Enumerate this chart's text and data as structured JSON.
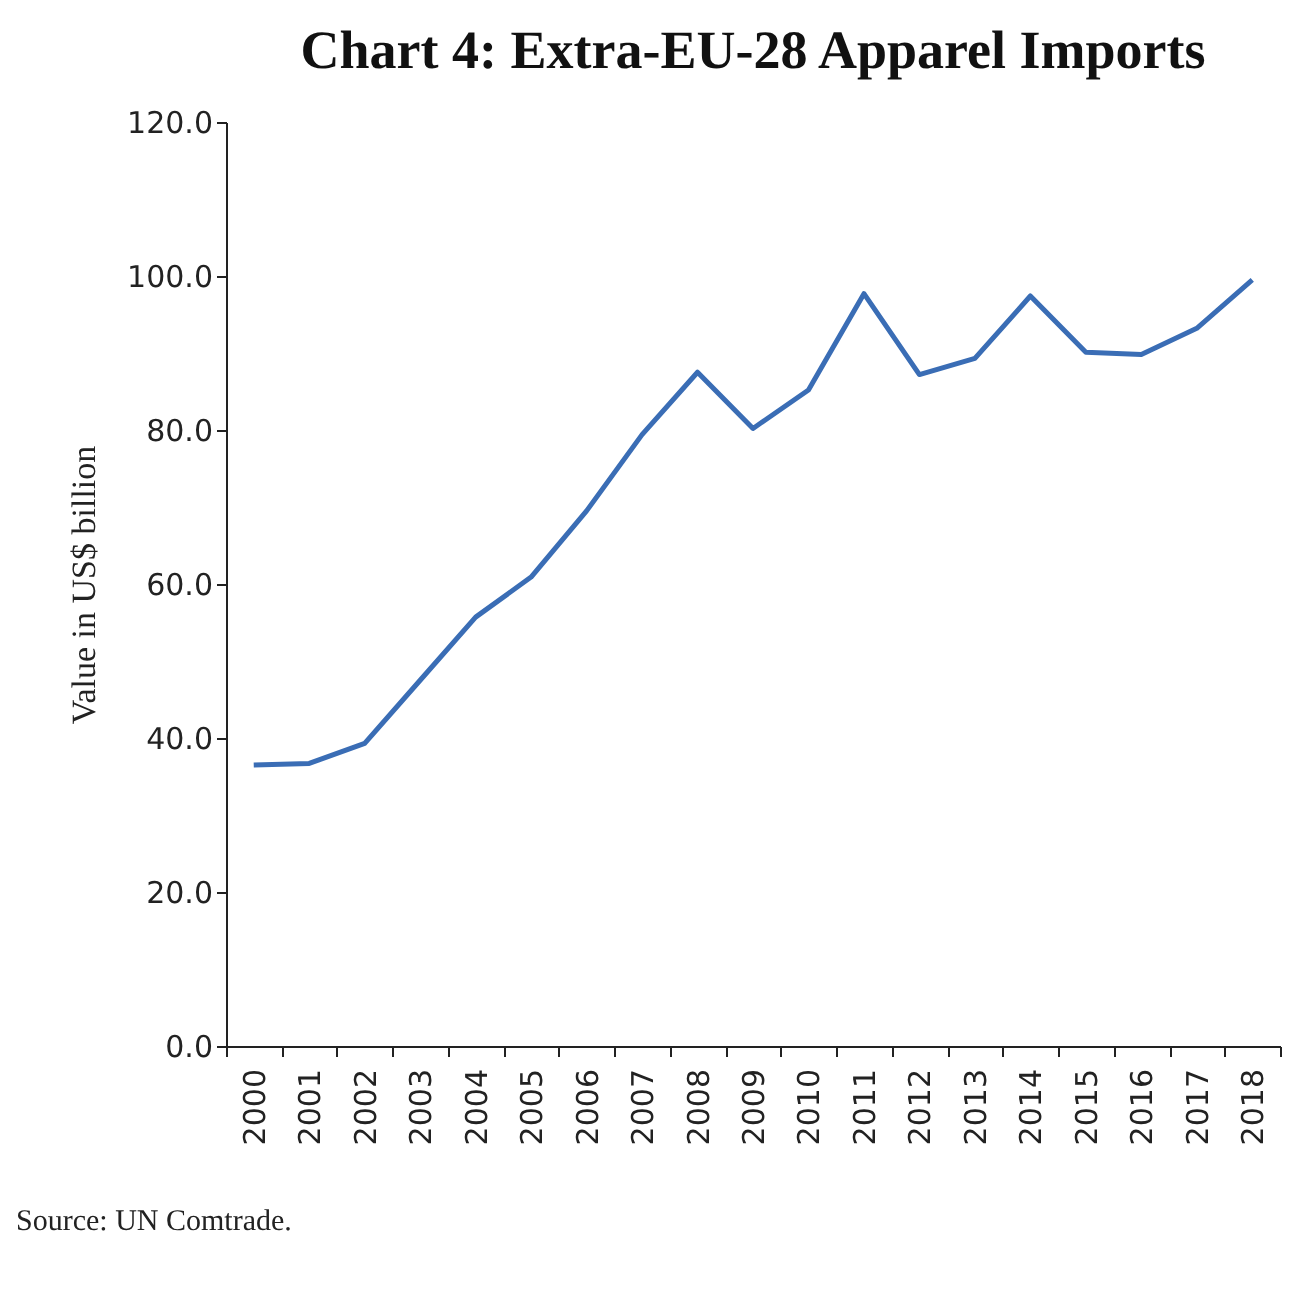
{
  "chart_data": {
    "type": "line",
    "title": "Chart 4: Extra-EU-28 Apparel Imports",
    "ylabel": "Value in US$ billion",
    "categories": [
      "2000",
      "2001",
      "2002",
      "2003",
      "2004",
      "2005",
      "2006",
      "2007",
      "2008",
      "2009",
      "2010",
      "2011",
      "2012",
      "2013",
      "2014",
      "2015",
      "2016",
      "2017",
      "2018"
    ],
    "series": [
      {
        "color": "#3a6db5",
        "values": [
          36.5,
          36.7,
          39.3,
          47.5,
          55.7,
          60.9,
          69.5,
          79.4,
          87.5,
          80.2,
          85.2,
          97.7,
          87.2,
          89.3,
          97.4,
          90.1,
          89.8,
          93.2,
          99.5
        ]
      }
    ],
    "ylim": [
      0,
      120
    ],
    "yticks": [
      {
        "value": 0,
        "label": "0.0"
      },
      {
        "value": 20,
        "label": "20.0"
      },
      {
        "value": 40,
        "label": "40.0"
      },
      {
        "value": 60,
        "label": "60.0"
      },
      {
        "value": 80,
        "label": "80.0"
      },
      {
        "value": 100,
        "label": "100.0"
      },
      {
        "value": 120,
        "label": "120.0"
      }
    ],
    "grid": false,
    "marker": "none",
    "line_style": "solid",
    "annotations": [
      "Source: UN Comtrade."
    ]
  }
}
